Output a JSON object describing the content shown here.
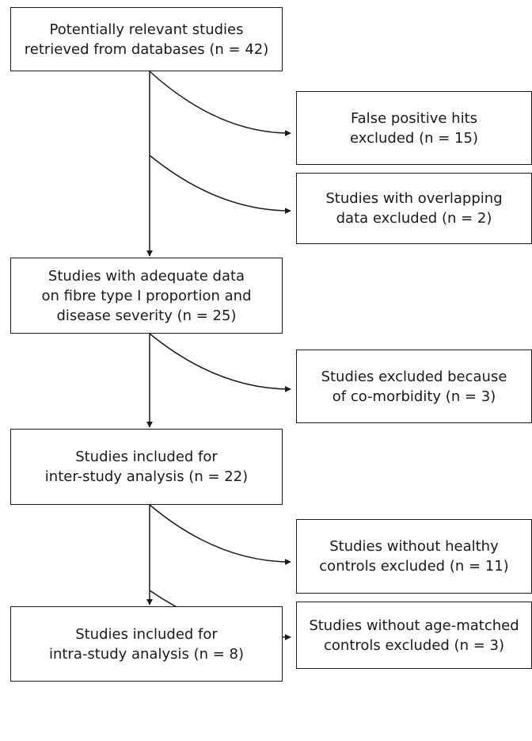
{
  "flowchart": {
    "main": [
      {
        "id": "retrieved",
        "lines": [
          "Potentially relevant studies",
          "retrieved from databases (n = 42)"
        ]
      },
      {
        "id": "adequate",
        "lines": [
          "Studies with adequate data",
          "on fibre type I proportion and",
          "disease severity (n = 25)"
        ]
      },
      {
        "id": "inter",
        "lines": [
          "Studies included for",
          "inter-study analysis (n = 22)"
        ]
      },
      {
        "id": "intra",
        "lines": [
          "Studies included for",
          "intra-study analysis (n = 8)"
        ]
      }
    ],
    "excluded": [
      {
        "id": "false-positive",
        "lines": [
          "False positive hits",
          "excluded (n = 15)"
        ]
      },
      {
        "id": "overlapping",
        "lines": [
          "Studies with overlapping",
          "data excluded (n = 2)"
        ]
      },
      {
        "id": "comorbidity",
        "lines": [
          "Studies excluded because",
          "of co-morbidity (n = 3)"
        ]
      },
      {
        "id": "no-healthy",
        "lines": [
          "Studies without healthy",
          "controls excluded (n = 11)"
        ]
      },
      {
        "id": "no-age-matched",
        "lines": [
          "Studies without age-matched",
          "controls excluded (n = 3)"
        ]
      }
    ]
  }
}
